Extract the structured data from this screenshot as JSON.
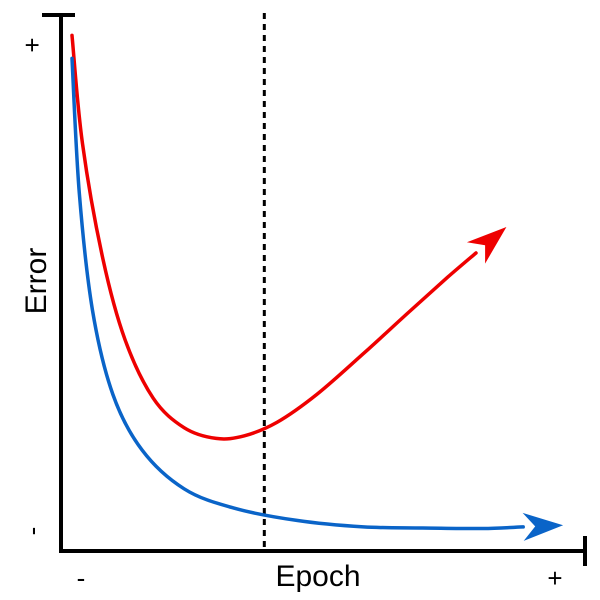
{
  "chart_data": {
    "type": "line",
    "title": "",
    "xlabel": "Epoch",
    "ylabel": "Error",
    "x_tick_labels": {
      "start": "-",
      "end": "+"
    },
    "y_tick_labels": {
      "top": "+",
      "bottom": "-"
    },
    "xlim": [
      0,
      1
    ],
    "ylim": [
      0,
      1
    ],
    "grid": false,
    "legend": "none",
    "reference_line": {
      "style": "dashed",
      "x": 0.388,
      "color": "#000000"
    },
    "series": [
      {
        "color": "#ee0000",
        "arrow_end": true,
        "points": [
          [
            0.021,
            0.962
          ],
          [
            0.041,
            0.76
          ],
          [
            0.08,
            0.545
          ],
          [
            0.122,
            0.395
          ],
          [
            0.176,
            0.285
          ],
          [
            0.235,
            0.23
          ],
          [
            0.296,
            0.21
          ],
          [
            0.35,
            0.215
          ],
          [
            0.412,
            0.24
          ],
          [
            0.488,
            0.292
          ],
          [
            0.579,
            0.37
          ],
          [
            0.663,
            0.445
          ],
          [
            0.737,
            0.51
          ],
          [
            0.792,
            0.556
          ]
        ]
      },
      {
        "color": "#0a64c8",
        "arrow_end": true,
        "points": [
          [
            0.021,
            0.919
          ],
          [
            0.035,
            0.668
          ],
          [
            0.06,
            0.45
          ],
          [
            0.099,
            0.292
          ],
          [
            0.155,
            0.188
          ],
          [
            0.235,
            0.116
          ],
          [
            0.33,
            0.08
          ],
          [
            0.45,
            0.057
          ],
          [
            0.577,
            0.045
          ],
          [
            0.69,
            0.043
          ],
          [
            0.805,
            0.042
          ],
          [
            0.882,
            0.045
          ]
        ]
      }
    ]
  }
}
